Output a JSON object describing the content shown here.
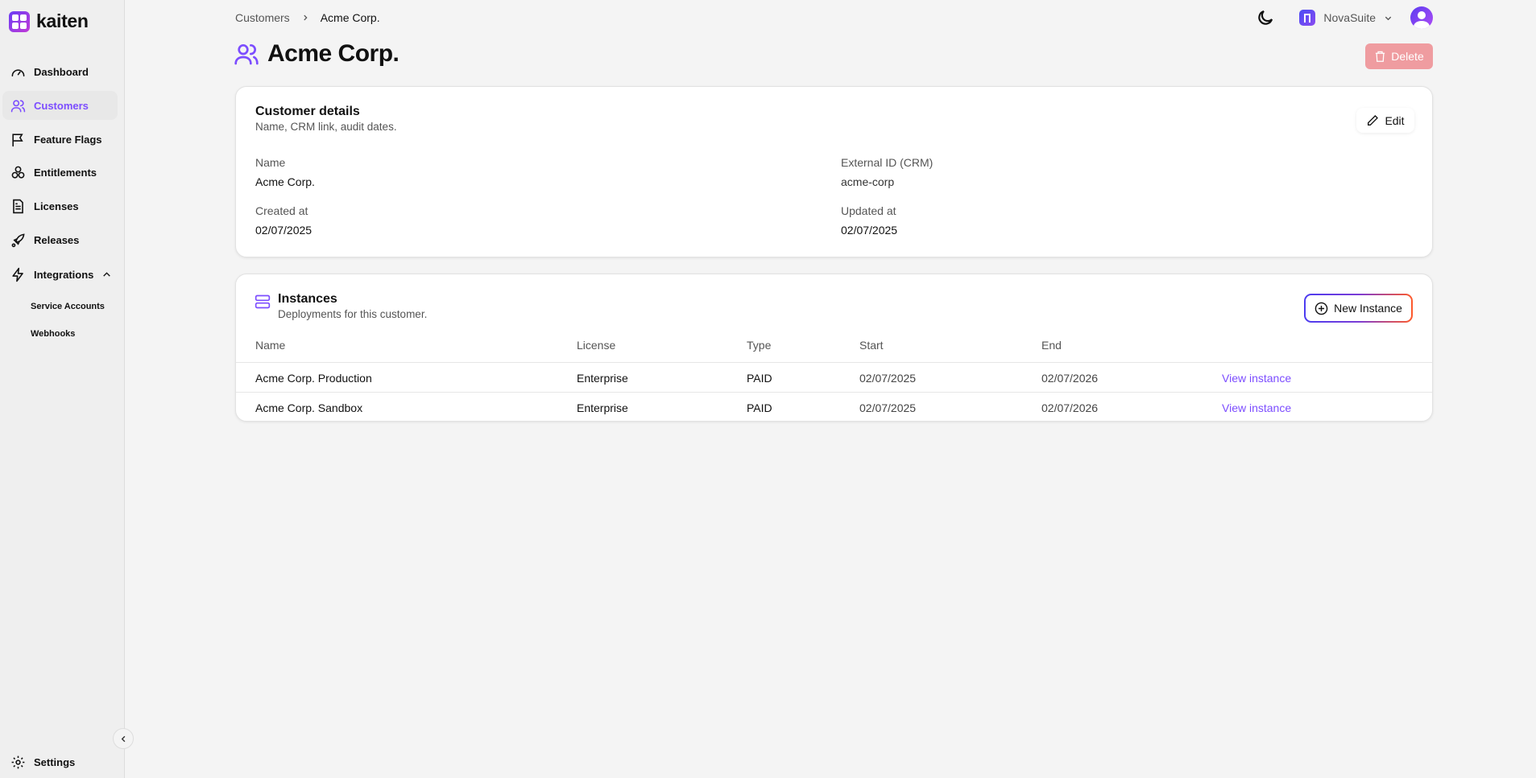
{
  "app": {
    "name": "kaiten"
  },
  "sidebar": {
    "items": [
      {
        "label": "Dashboard",
        "icon": "gauge-icon"
      },
      {
        "label": "Customers",
        "icon": "users-icon",
        "active": true
      },
      {
        "label": "Feature Flags",
        "icon": "flag-icon"
      },
      {
        "label": "Entitlements",
        "icon": "boxes-icon"
      },
      {
        "label": "Licenses",
        "icon": "file-text-icon"
      },
      {
        "label": "Releases",
        "icon": "rocket-icon"
      },
      {
        "label": "Integrations",
        "icon": "zap-icon",
        "expanded": true
      }
    ],
    "sub_items": [
      "Service Accounts",
      "Webhooks"
    ],
    "settings": "Settings"
  },
  "breadcrumb": [
    "Customers",
    "Acme Corp."
  ],
  "header": {
    "org": "NovaSuite"
  },
  "page": {
    "title": "Acme Corp.",
    "delete_label": "Delete"
  },
  "details": {
    "title": "Customer details",
    "subtitle": "Name, CRM link, audit dates.",
    "edit_label": "Edit",
    "fields": [
      {
        "label": "Name",
        "value": "Acme Corp."
      },
      {
        "label": "External ID (CRM)",
        "value": "acme-corp"
      },
      {
        "label": "Created at",
        "value": "02/07/2025"
      },
      {
        "label": "Updated at",
        "value": "02/07/2025"
      }
    ]
  },
  "instances": {
    "title": "Instances",
    "subtitle": "Deployments for this customer.",
    "new_label": "New Instance",
    "columns": [
      "Name",
      "License",
      "Type",
      "Start",
      "End"
    ],
    "rows": [
      {
        "name": "Acme Corp. Production",
        "license": "Enterprise",
        "type": "PAID",
        "start": "02/07/2025",
        "end": "02/07/2026",
        "action": "View instance"
      },
      {
        "name": "Acme Corp. Sandbox",
        "license": "Enterprise",
        "type": "PAID",
        "start": "02/07/2025",
        "end": "02/07/2026",
        "action": "View instance"
      }
    ]
  },
  "colors": {
    "accent": "#7c4dff",
    "delete": "#ef9ca0"
  }
}
